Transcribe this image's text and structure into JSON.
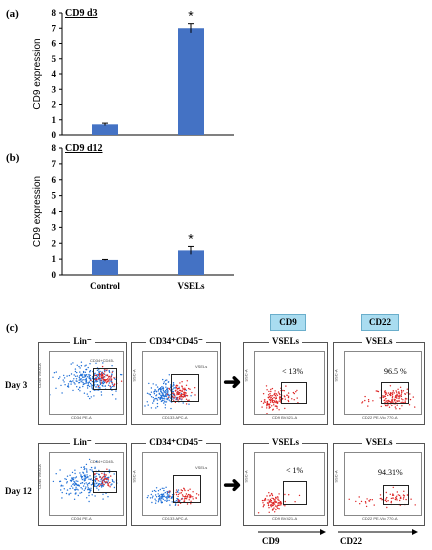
{
  "chart_data": [
    {
      "type": "bar",
      "panel": "(a)",
      "title": "CD9 d3",
      "ylabel": "CD9 expression",
      "categories": [
        "Control",
        "VSELs"
      ],
      "values": [
        0.7,
        7.0
      ],
      "errors": [
        0.08,
        0.3
      ],
      "annotations": [
        "",
        "*"
      ],
      "ylim": [
        0,
        8
      ],
      "yticks": [
        "0",
        "1",
        "2",
        "3",
        "4",
        "5",
        "6",
        "7",
        "8"
      ],
      "color": "#4472c4"
    },
    {
      "type": "bar",
      "panel": "(b)",
      "title": "CD9 d12",
      "ylabel": "CD9 expression",
      "categories": [
        "Control",
        "VSELs"
      ],
      "values": [
        0.95,
        1.55
      ],
      "errors": [
        0.03,
        0.25
      ],
      "annotations": [
        "",
        "*"
      ],
      "ylim": [
        0,
        8
      ],
      "yticks": [
        "0",
        "1",
        "2",
        "3",
        "4",
        "5",
        "6",
        "7",
        "8"
      ],
      "xlabels": [
        "Control",
        "VSELs"
      ],
      "color": "#4472c4"
    }
  ],
  "facs": {
    "panel_label": "(c)",
    "markers": [
      "CD9",
      "CD22"
    ],
    "rows": [
      {
        "label": "Day 3",
        "lin_title": "Lin⁻",
        "lin_gate_label": "CD34+CD45-",
        "cd_title": "CD34⁺CD45⁻",
        "cd_gate_label": "VSELs",
        "cd9_title": "VSELs",
        "cd9_pct": "< 13%",
        "cd22_title": "VSELs",
        "cd22_pct": "96.5 %"
      },
      {
        "label": "Day 12",
        "lin_title": "Lin⁻",
        "lin_gate_label": "CD34+CD45-",
        "cd_title": "CD34⁺CD45⁻",
        "cd_gate_label": "VSELs",
        "cd9_title": "VSELs",
        "cd9_pct": "< 1%",
        "cd22_title": "VSELs",
        "cd22_pct": "94.31%"
      }
    ],
    "axis_labels": {
      "lin_x": "CD34 PE-A",
      "lin_y": "CD45 V500-A",
      "cd_x": "CD133 APC-A",
      "cd_y": "SSC-A",
      "cd9_x": "CD9 BV421-A",
      "cd22_x": "CD22 PE-Vio 770-A",
      "ssc_y": "SSC-A"
    },
    "bottom_arrows": [
      "CD9",
      "CD22"
    ]
  }
}
